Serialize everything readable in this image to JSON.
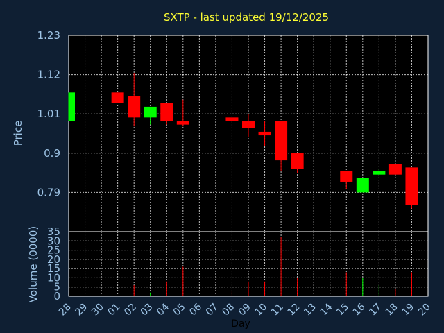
{
  "chart_data": {
    "type": "candlestick",
    "title": "SXTP - last updated 19/12/2025",
    "ylabel": "Price",
    "volume_label": "Volume (0000)",
    "xlabel": "Day",
    "grid": true,
    "up_color": "#00ff00",
    "down_color": "#ff0000",
    "price_ticks": [
      "1.23",
      "1.12",
      "1.01",
      "0.9",
      "0.79"
    ],
    "price_range": [
      0.68,
      1.23
    ],
    "volume_ticks": [
      "35",
      "30",
      "25",
      "20",
      "15",
      "10",
      "5",
      "0"
    ],
    "volume_range": [
      0,
      35
    ],
    "x_labels": [
      "28",
      "29",
      "30",
      "01",
      "02",
      "03",
      "04",
      "05",
      "06",
      "07",
      "08",
      "09",
      "10",
      "11",
      "12",
      "13",
      "14",
      "15",
      "16",
      "17",
      "18",
      "19",
      "20"
    ],
    "candles": [
      {
        "day": "28",
        "open": 0.99,
        "close": 1.07,
        "high": 1.07,
        "low": 0.99,
        "volume": 0
      },
      {
        "day": "01",
        "open": 1.07,
        "close": 1.04,
        "high": 1.07,
        "low": 1.04,
        "volume": 0.3
      },
      {
        "day": "02",
        "open": 1.06,
        "close": 1.0,
        "high": 1.125,
        "low": 0.975,
        "volume": 6
      },
      {
        "day": "03",
        "open": 1.0,
        "close": 1.03,
        "high": 1.03,
        "low": 0.98,
        "volume": 2
      },
      {
        "day": "04",
        "open": 1.04,
        "close": 0.99,
        "high": 1.04,
        "low": 0.98,
        "volume": 8
      },
      {
        "day": "05",
        "open": 0.99,
        "close": 0.98,
        "high": 1.05,
        "low": 0.975,
        "volume": 16
      },
      {
        "day": "08",
        "open": 1.0,
        "close": 0.99,
        "high": 1.0,
        "low": 0.985,
        "volume": 3
      },
      {
        "day": "09",
        "open": 0.99,
        "close": 0.97,
        "high": 1.01,
        "low": 0.945,
        "volume": 8
      },
      {
        "day": "10",
        "open": 0.96,
        "close": 0.95,
        "high": 0.99,
        "low": 0.92,
        "volume": 8
      },
      {
        "day": "11",
        "open": 0.99,
        "close": 0.88,
        "high": 0.99,
        "low": 0.85,
        "volume": 32
      },
      {
        "day": "12",
        "open": 0.9,
        "close": 0.855,
        "high": 0.9,
        "low": 0.845,
        "volume": 10
      },
      {
        "day": "15",
        "open": 0.85,
        "close": 0.82,
        "high": 0.85,
        "low": 0.8,
        "volume": 13
      },
      {
        "day": "16",
        "open": 0.79,
        "close": 0.83,
        "high": 0.83,
        "low": 0.79,
        "volume": 10
      },
      {
        "day": "17",
        "open": 0.84,
        "close": 0.85,
        "high": 0.855,
        "low": 0.84,
        "volume": 6
      },
      {
        "day": "18",
        "open": 0.87,
        "close": 0.84,
        "high": 0.87,
        "low": 0.84,
        "volume": 4
      },
      {
        "day": "19",
        "open": 0.86,
        "close": 0.755,
        "high": 0.86,
        "low": 0.745,
        "volume": 13
      }
    ]
  }
}
